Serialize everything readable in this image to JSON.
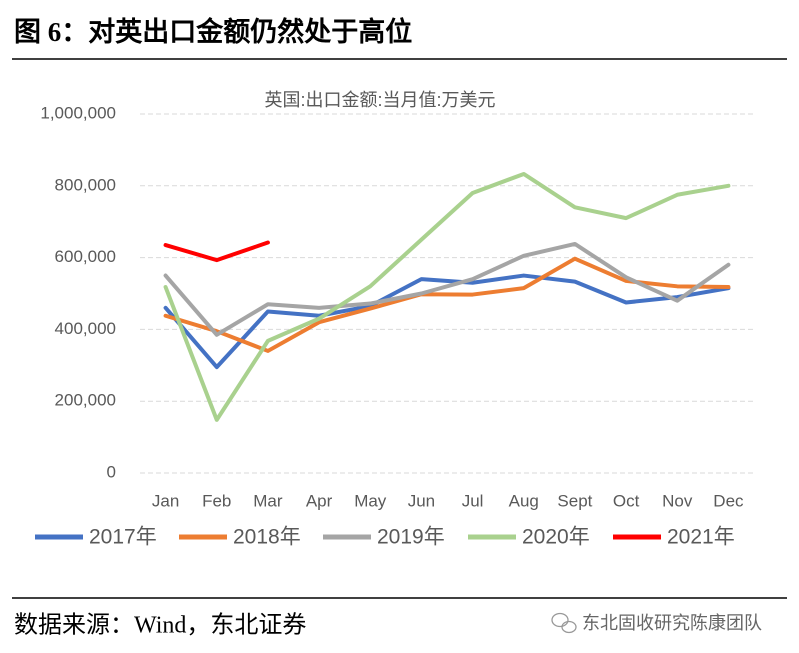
{
  "figure_title": "图 6：对英出口金额仍然处于高位",
  "source": "数据来源：Wind，东北证券",
  "watermark": "东北固收研究陈康团队",
  "chart_data": {
    "type": "line",
    "title": "英国:出口金额:当月值:万美元",
    "categories": [
      "Jan",
      "Feb",
      "Mar",
      "Apr",
      "May",
      "Jun",
      "Jul",
      "Aug",
      "Sept",
      "Oct",
      "Nov",
      "Dec"
    ],
    "series": [
      {
        "name": "2017年",
        "color": "#4472c4",
        "values": [
          460000,
          295000,
          450000,
          438000,
          465000,
          540000,
          530000,
          550000,
          533000,
          475000,
          490000,
          515000
        ]
      },
      {
        "name": "2018年",
        "color": "#ed7d31",
        "values": [
          438000,
          395000,
          340000,
          420000,
          458000,
          498000,
          497000,
          515000,
          597000,
          535000,
          520000,
          518000
        ]
      },
      {
        "name": "2019年",
        "color": "#a5a5a5",
        "values": [
          550000,
          385000,
          470000,
          460000,
          472000,
          500000,
          540000,
          605000,
          638000,
          545000,
          480000,
          580000
        ]
      },
      {
        "name": "2020年",
        "color": "#a9d18e",
        "values": [
          518000,
          148000,
          368000,
          430000,
          520000,
          650000,
          780000,
          833000,
          740000,
          710000,
          775000,
          800000
        ]
      },
      {
        "name": "2021年",
        "color": "#ff0000",
        "values": [
          635000,
          593000,
          642000,
          null,
          null,
          null,
          null,
          null,
          null,
          null,
          null,
          null
        ]
      }
    ],
    "ylim": [
      0,
      1000000
    ],
    "yticks": [
      0,
      {
        "value": 200000,
        "label": "200,000"
      },
      {
        "value": 400000,
        "label": "400,000"
      },
      {
        "value": 600000,
        "label": "600,000"
      },
      {
        "value": 800000,
        "label": "800,000"
      },
      {
        "value": 1000000,
        "label": "1,000,000"
      }
    ],
    "grid": true,
    "legend": "bottom"
  }
}
